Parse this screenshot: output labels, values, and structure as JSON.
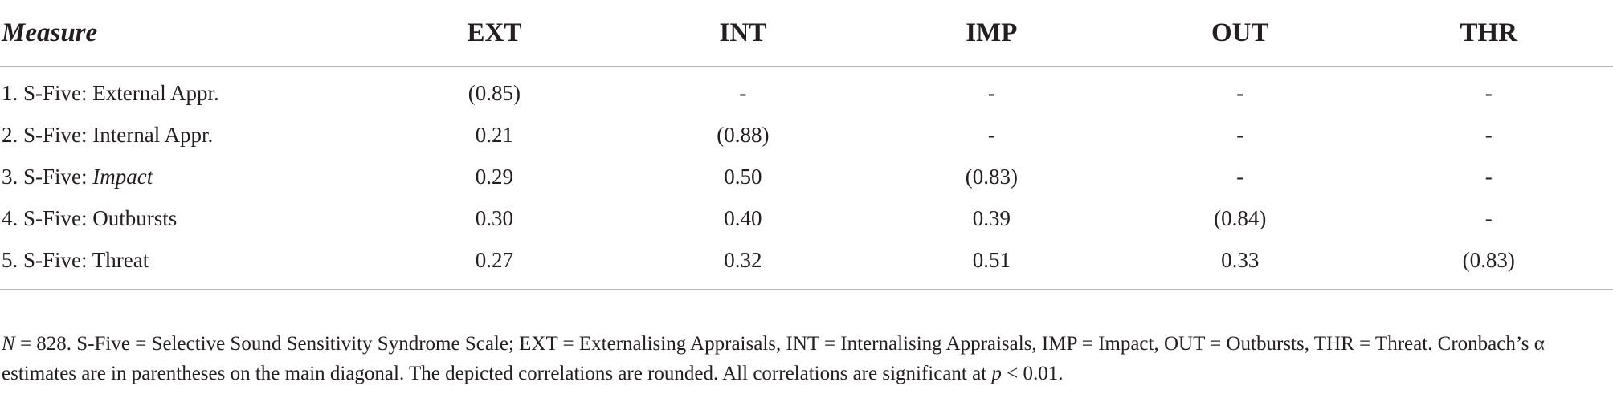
{
  "table": {
    "header": {
      "measure": "Measure",
      "columns": [
        "EXT",
        "INT",
        "IMP",
        "OUT",
        "THR"
      ]
    },
    "rows": [
      {
        "prefix": "1. S-Five: ",
        "label": "External Appr.",
        "italic": false,
        "cells": [
          "(0.85)",
          "-",
          "-",
          "-",
          "-"
        ]
      },
      {
        "prefix": "2. S-Five: ",
        "label": "Internal Appr.",
        "italic": false,
        "cells": [
          "0.21",
          "(0.88)",
          "-",
          "-",
          "-"
        ]
      },
      {
        "prefix": "3. S-Five: ",
        "label": "Impact",
        "italic": true,
        "cells": [
          "0.29",
          "0.50",
          "(0.83)",
          "-",
          "-"
        ]
      },
      {
        "prefix": "4. S-Five: ",
        "label": "Outbursts",
        "italic": false,
        "cells": [
          "0.30",
          "0.40",
          "0.39",
          "(0.84)",
          "-"
        ]
      },
      {
        "prefix": "5. S-Five: ",
        "label": "Threat",
        "italic": false,
        "cells": [
          "0.27",
          "0.32",
          "0.51",
          "0.33",
          "(0.83)"
        ]
      }
    ]
  },
  "note": {
    "n_symbol": "N",
    "line1_rest": " = 828. S-Five = Selective Sound Sensitivity Syndrome Scale; EXT = Externalising Appraisals, INT = Internalising Appraisals, IMP = Impact, OUT = Outbursts, THR = Threat. Cronbach’s α",
    "line2_start": "estimates are in parentheses on the main diagonal. The depicted correlations are rounded. All correlations are significant at ",
    "p_symbol": "p",
    "line2_end": " < 0.01."
  }
}
